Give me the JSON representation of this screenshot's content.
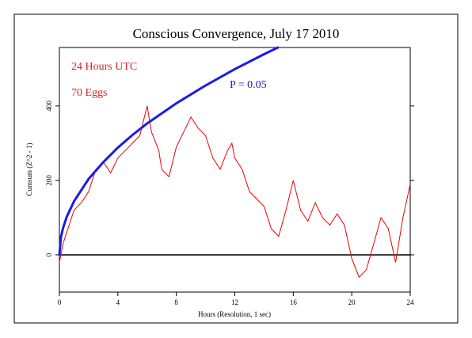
{
  "chart_data": {
    "type": "line",
    "title": "Conscious Convergence, July 17 2010",
    "xlabel": "Hours (Resolution, 1 sec)",
    "ylabel": "Cumsum (Z^2 - 1)",
    "annotations": [
      {
        "text": "24 Hours UTC",
        "color": "#dd2222"
      },
      {
        "text": "70 Eggs",
        "color": "#dd2222"
      },
      {
        "text": "P = 0.05",
        "color": "#1a1acc"
      }
    ],
    "xlim": [
      0,
      24
    ],
    "xticks": [
      0,
      4,
      8,
      12,
      16,
      20,
      24
    ],
    "ylim": [
      -100,
      557
    ],
    "yticks": [
      0,
      200,
      400
    ],
    "zero_line": true,
    "series": [
      {
        "color": "#ee0000",
        "x": [
          0,
          0.25,
          0.5,
          1,
          1.5,
          2,
          2.5,
          3,
          3.5,
          4,
          4.5,
          5,
          5.5,
          6,
          6.3,
          6.8,
          7,
          7.5,
          8,
          8.5,
          9,
          9.5,
          10,
          10.5,
          11,
          11.5,
          11.8,
          12,
          12.5,
          13,
          13.5,
          14,
          14.5,
          15,
          15.5,
          16,
          16.5,
          17,
          17.5,
          18,
          18.5,
          19,
          19.5,
          20,
          20.5,
          21,
          21.5,
          22,
          22.5,
          23,
          23.5,
          24
        ],
        "values": [
          -20,
          30,
          60,
          120,
          140,
          170,
          230,
          250,
          220,
          260,
          280,
          300,
          320,
          400,
          330,
          280,
          230,
          210,
          290,
          330,
          370,
          340,
          320,
          260,
          230,
          280,
          300,
          260,
          230,
          170,
          150,
          130,
          70,
          50,
          120,
          200,
          120,
          90,
          140,
          100,
          80,
          110,
          80,
          -10,
          -60,
          -40,
          30,
          100,
          70,
          -20,
          100,
          190
        ]
      },
      {
        "color": "#1a1aee",
        "x": [
          0,
          0.1,
          0.25,
          0.5,
          1,
          2,
          3,
          4,
          5,
          6,
          8,
          10,
          12,
          14,
          15
        ],
        "values": [
          0,
          46,
          72,
          102,
          144,
          204,
          249,
          288,
          322,
          353,
          407,
          455,
          499,
          539,
          558
        ]
      }
    ]
  }
}
